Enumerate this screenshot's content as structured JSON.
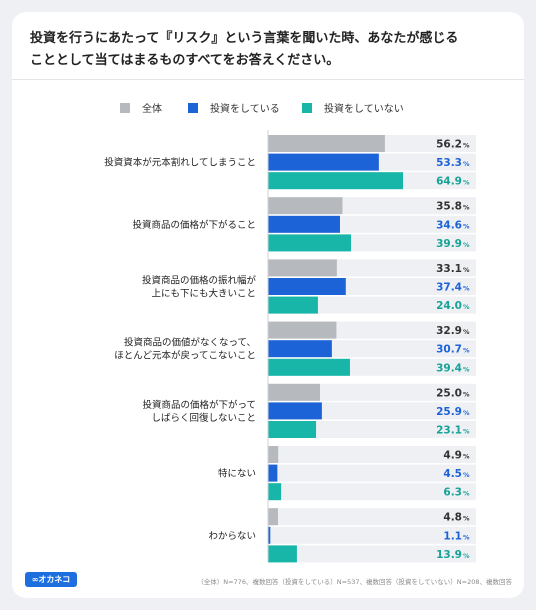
{
  "title_lines": [
    "投資を行うにあたって『リスク』という言葉を聞いた時、あなたが感じる",
    "こととして当てはまるものすべてをお答えください。"
  ],
  "logo_text": "∞オカネコ",
  "footnote": "（全体）N=776、複数回答（投資をしている）N=537、複数回答（投資をしていない）N=208、複数回答",
  "chart_data": {
    "type": "bar",
    "orientation": "horizontal",
    "unit": "%",
    "categories": [
      [
        "投資資本が元本割れしてしまうこと"
      ],
      [
        "投資商品の価格が下がること"
      ],
      [
        "投資商品の価格の振れ幅が",
        "上にも下にも大きいこと"
      ],
      [
        "投資商品の価値がなくなって、",
        "ほとんど元本が戻ってこないこと"
      ],
      [
        "投資商品の価格が下がって",
        "しばらく回復しないこと"
      ],
      [
        "特にない"
      ],
      [
        "わからない"
      ]
    ],
    "series": [
      {
        "name": "全体",
        "color": "#b6b9bd",
        "values": [
          56.2,
          35.8,
          33.1,
          32.9,
          25.0,
          4.9,
          4.8
        ]
      },
      {
        "name": "投資をしている",
        "color": "#1d63d8",
        "values": [
          53.3,
          34.6,
          37.4,
          30.7,
          25.9,
          4.5,
          1.1
        ]
      },
      {
        "name": "投資をしていない",
        "color": "#17b6a8",
        "values": [
          64.9,
          39.9,
          24.0,
          39.4,
          23.1,
          6.3,
          13.9
        ]
      }
    ],
    "label_colors": [
      "#333333",
      "#1d63d8",
      "#17a297"
    ],
    "legend_position": "top",
    "xlim": [
      0,
      100
    ]
  }
}
